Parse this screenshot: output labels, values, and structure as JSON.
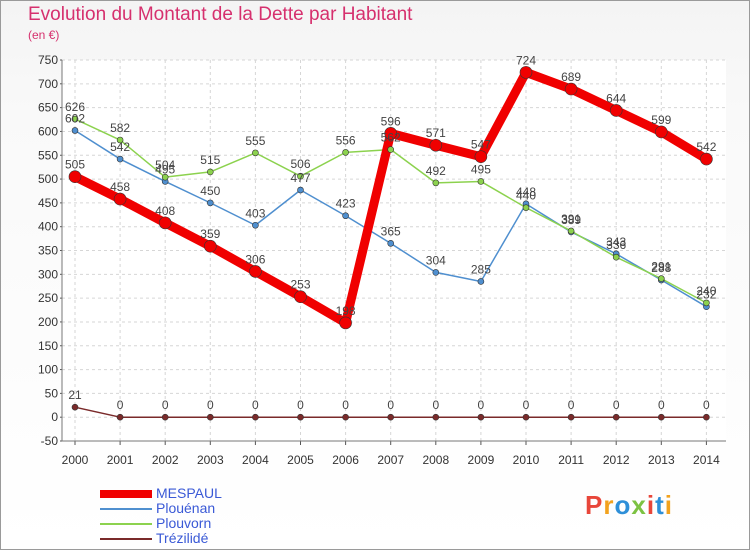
{
  "header": {
    "title": "Evolution du Montant de la Dette par Habitant",
    "subtitle": "(en €)"
  },
  "logo": {
    "text": "Proxiti",
    "letter_colors": [
      "#e8463a",
      "#f2a21e",
      "#2e8fd8",
      "#7cc242",
      "#e8463a",
      "#2e8fd8",
      "#f2a21e"
    ]
  },
  "chart_data": {
    "type": "line",
    "title": "Evolution du Montant de la Dette par Habitant",
    "subtitle": "(en €)",
    "x": [
      "2000",
      "2001",
      "2002",
      "2003",
      "2004",
      "2005",
      "2006",
      "2007",
      "2008",
      "2009",
      "2010",
      "2011",
      "2012",
      "2013",
      "2014"
    ],
    "ylim": [
      -50,
      750
    ],
    "yticks": [
      -50,
      0,
      50,
      100,
      150,
      200,
      250,
      300,
      350,
      400,
      450,
      500,
      550,
      600,
      650,
      700,
      750
    ],
    "grid": true,
    "legend_position": "bottom-left",
    "series": [
      {
        "name": "Plouénan",
        "color": "#4f8fcf",
        "values": [
          602,
          542,
          495,
          450,
          403,
          477,
          423,
          365,
          304,
          285,
          448,
          389,
          343,
          288,
          232
        ]
      },
      {
        "name": "Plouvorn",
        "color": "#8cd24e",
        "values": [
          626,
          582,
          504,
          515,
          555,
          506,
          556,
          562,
          492,
          495,
          440,
          391,
          336,
          291,
          240
        ]
      },
      {
        "name": "Trézilidé",
        "color": "#7a2a2a",
        "values": [
          21,
          0,
          0,
          0,
          0,
          0,
          0,
          0,
          0,
          0,
          0,
          0,
          0,
          0,
          0
        ]
      },
      {
        "name": "MESPAUL",
        "color": "#f00000",
        "values": [
          505,
          458,
          408,
          359,
          306,
          253,
          198,
          596,
          571,
          547,
          724,
          689,
          644,
          599,
          542
        ]
      }
    ]
  }
}
